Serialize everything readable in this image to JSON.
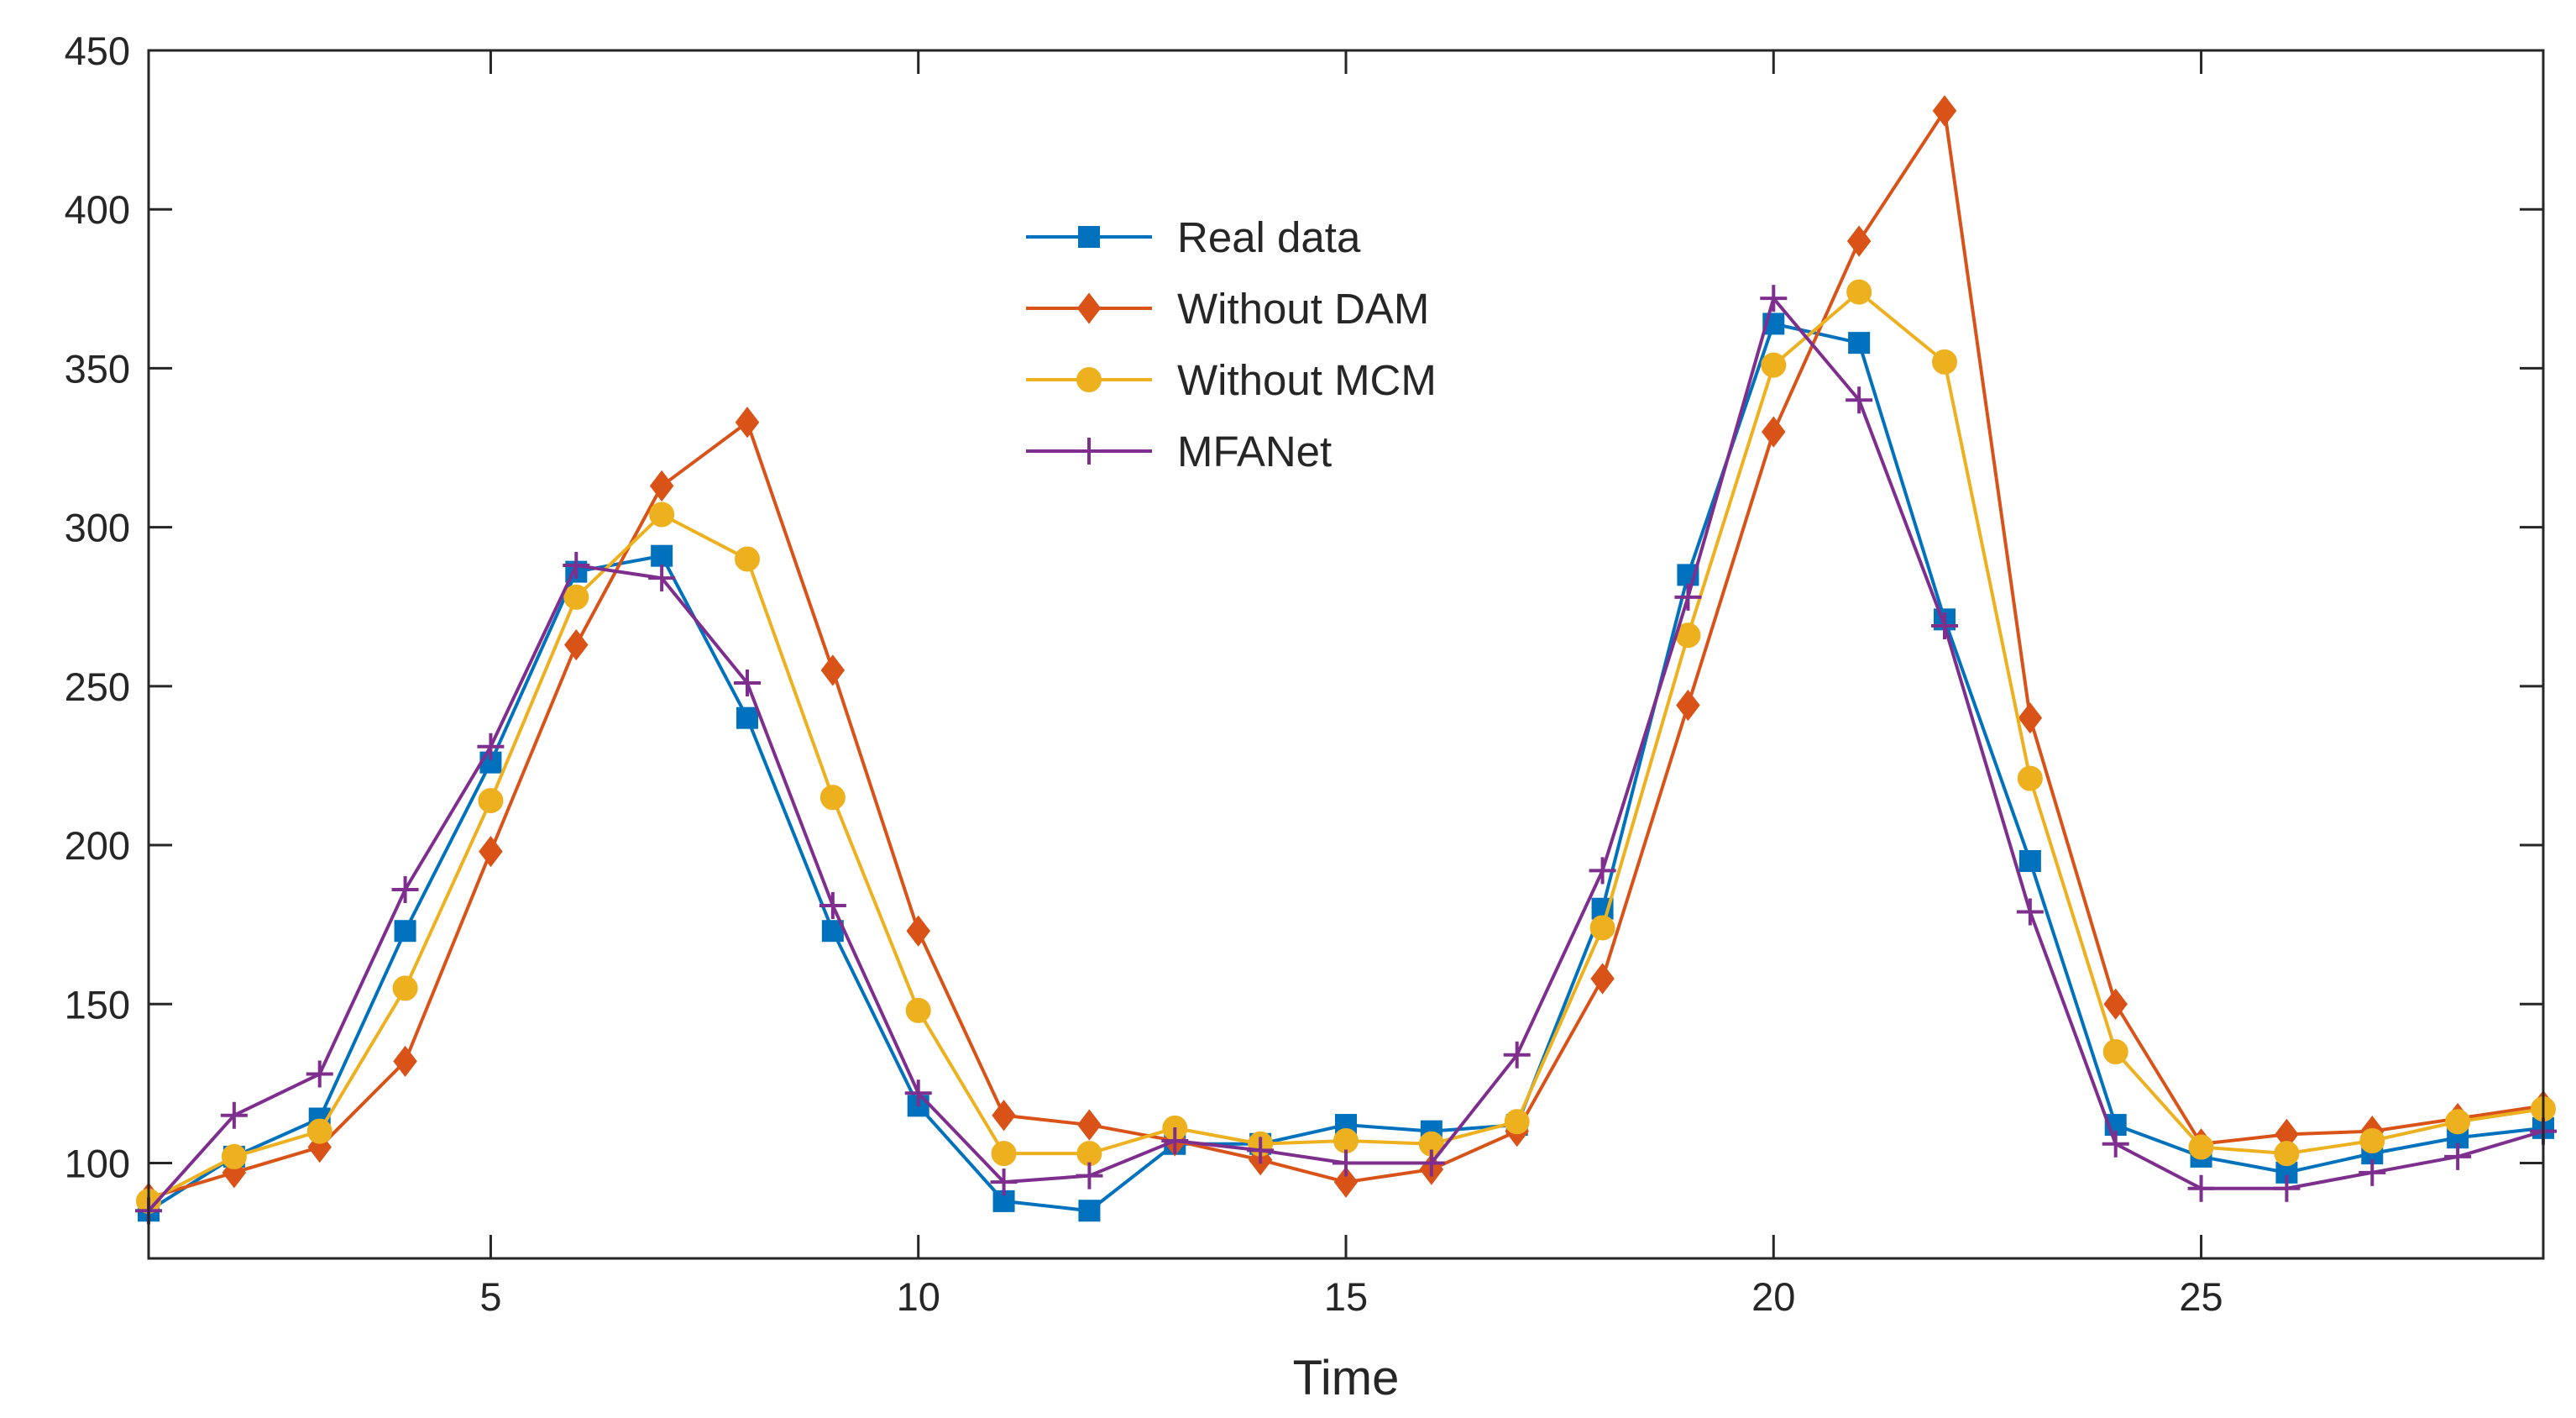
{
  "chart_data": {
    "type": "line",
    "title": "",
    "xlabel": "Time",
    "ylabel": "",
    "xlim": [
      1,
      29
    ],
    "ylim": [
      70,
      450
    ],
    "xticks": [
      5,
      10,
      15,
      20,
      25
    ],
    "yticks": [
      100,
      150,
      200,
      250,
      300,
      350,
      400,
      450
    ],
    "xtick_labels": [
      "5",
      "10",
      "15",
      "20",
      "25"
    ],
    "ytick_labels": [
      "100",
      "150",
      "200",
      "250",
      "300",
      "350",
      "400",
      "450"
    ],
    "grid": false,
    "legend_position": "top-center",
    "x": [
      1,
      2,
      3,
      4,
      5,
      6,
      7,
      8,
      9,
      10,
      11,
      12,
      13,
      14,
      15,
      16,
      17,
      18,
      19,
      20,
      21,
      22,
      23,
      24,
      25,
      26,
      27,
      28,
      29
    ],
    "series": [
      {
        "name": "Real data",
        "color": "#0072bd",
        "marker": "square",
        "values": [
          85,
          102,
          114,
          173,
          226,
          286,
          291,
          240,
          173,
          118,
          88,
          85,
          106,
          106,
          112,
          110,
          112,
          180,
          285,
          364,
          358,
          271,
          195,
          112,
          102,
          97,
          103,
          108,
          111
        ]
      },
      {
        "name": "Without DAM",
        "color": "#d95319",
        "marker": "diamond",
        "values": [
          89,
          97,
          105,
          132,
          198,
          263,
          313,
          333,
          255,
          173,
          115,
          112,
          107,
          101,
          94,
          98,
          110,
          158,
          244,
          330,
          390,
          431,
          240,
          150,
          106,
          109,
          110,
          114,
          118
        ]
      },
      {
        "name": "Without MCM",
        "color": "#edb120",
        "marker": "circle",
        "values": [
          88,
          102,
          110,
          155,
          214,
          278,
          304,
          290,
          215,
          148,
          103,
          103,
          111,
          106,
          107,
          106,
          113,
          174,
          266,
          351,
          374,
          352,
          221,
          135,
          105,
          103,
          107,
          113,
          117
        ]
      },
      {
        "name": "MFANet",
        "color": "#7e2f8e",
        "marker": "plus",
        "values": [
          85,
          115,
          128,
          186,
          231,
          288,
          284,
          251,
          181,
          122,
          94,
          96,
          107,
          104,
          100,
          100,
          134,
          192,
          278,
          372,
          340,
          269,
          179,
          106,
          92,
          92,
          97,
          102,
          110
        ]
      }
    ]
  }
}
